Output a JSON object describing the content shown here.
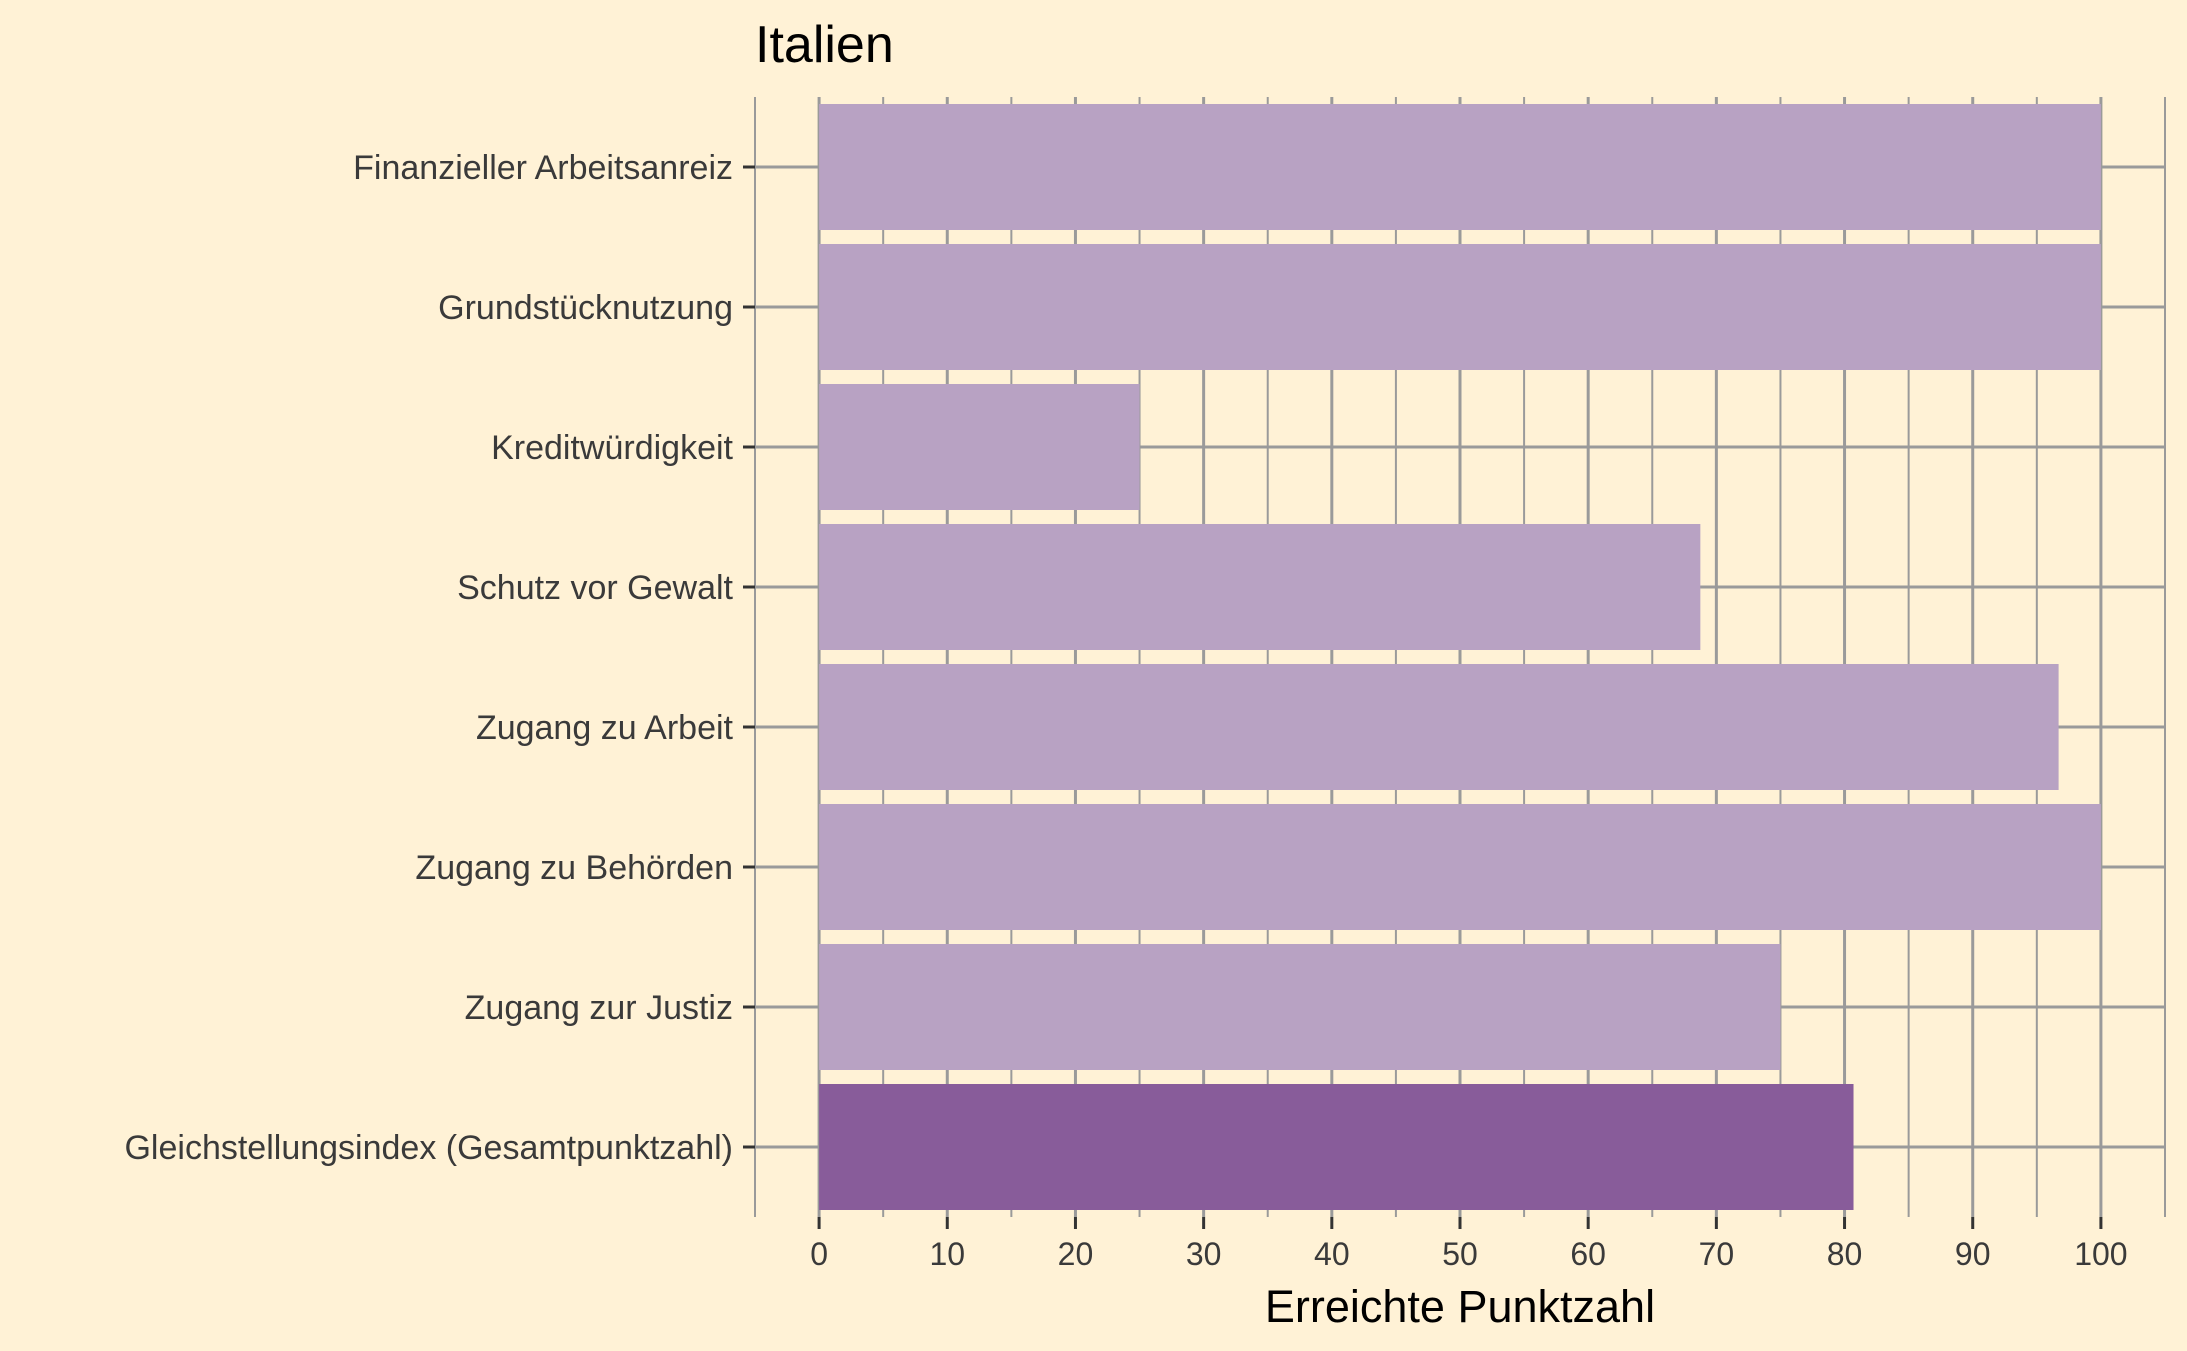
{
  "chart_data": {
    "type": "bar",
    "orientation": "horizontal",
    "title": "Italien",
    "xlabel": "Erreichte Punktzahl",
    "ylabel": "",
    "categories": [
      "Finanzieller Arbeitsanreiz",
      "Grundstücknutzung",
      "Kreditwürdigkeit",
      "Schutz vor Gewalt",
      "Zugang zu Arbeit",
      "Zugang zu Behörden",
      "Zugang zur Justiz",
      "Gleichstellungsindex (Gesamtpunktzahl)"
    ],
    "values": [
      100,
      100,
      25,
      68.75,
      96.7,
      100,
      75,
      80.7
    ],
    "highlight_index": 7,
    "xlim": [
      -5,
      105
    ],
    "xticks": [
      0,
      10,
      20,
      30,
      40,
      50,
      60,
      70,
      80,
      90,
      100
    ],
    "xtick_labels": [
      "0",
      "10",
      "20",
      "30",
      "40",
      "50",
      "60",
      "70",
      "80",
      "90",
      "100"
    ],
    "grid": true,
    "legend": "none",
    "colors": {
      "background": "#fff2d6",
      "bar": "#b8a2c3",
      "bar_highlight": "#885c9a",
      "grid": "#9a9a9a"
    }
  }
}
